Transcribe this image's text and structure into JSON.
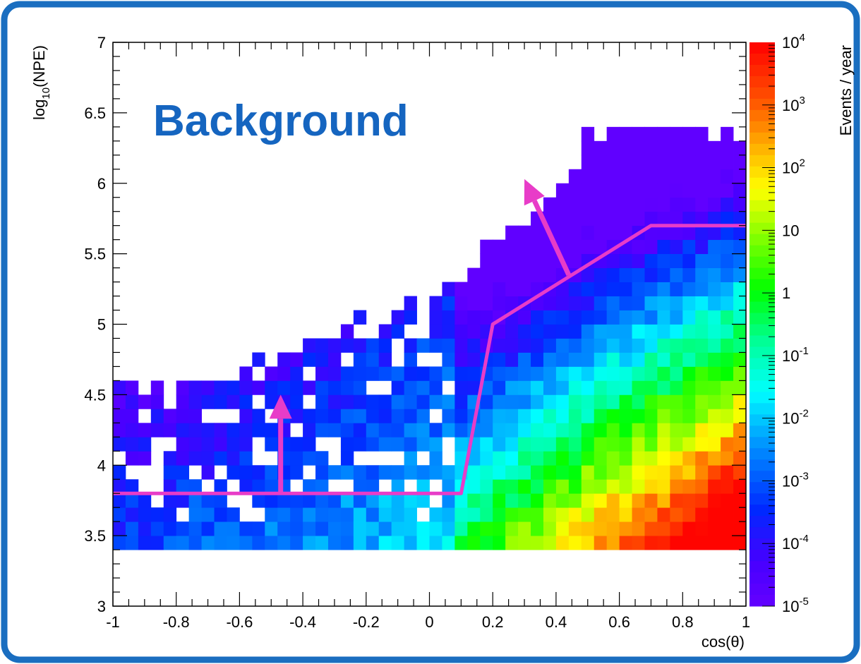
{
  "chart_data": {
    "type": "heatmap",
    "title": "",
    "annotation": "Background",
    "xlabel": "cos(θ)",
    "ylabel_main": "log",
    "ylabel_sub": "10",
    "ylabel_rest": "(NPE)",
    "xlim": [
      -1,
      1
    ],
    "ylim": [
      3,
      7
    ],
    "x_ticks": [
      {
        "v": -1,
        "label": "-1"
      },
      {
        "v": -0.8,
        "label": "-0.8"
      },
      {
        "v": -0.6,
        "label": "-0.6"
      },
      {
        "v": -0.4,
        "label": "-0.4"
      },
      {
        "v": -0.2,
        "label": "-0.2"
      },
      {
        "v": 0,
        "label": "0"
      },
      {
        "v": 0.2,
        "label": "0.2"
      },
      {
        "v": 0.4,
        "label": "0.4"
      },
      {
        "v": 0.6,
        "label": "0.6"
      },
      {
        "v": 0.8,
        "label": "0.8"
      },
      {
        "v": 1,
        "label": "1"
      }
    ],
    "y_ticks": [
      {
        "v": 3,
        "label": "3"
      },
      {
        "v": 3.5,
        "label": "3.5"
      },
      {
        "v": 4,
        "label": "4"
      },
      {
        "v": 4.5,
        "label": "4.5"
      },
      {
        "v": 5,
        "label": "5"
      },
      {
        "v": 5.5,
        "label": "5.5"
      },
      {
        "v": 6,
        "label": "6"
      },
      {
        "v": 6.5,
        "label": "6.5"
      },
      {
        "v": 7,
        "label": "7"
      }
    ],
    "colorbar": {
      "title": "Events / year",
      "log_min": -5,
      "log_max": 4,
      "labels": [
        {
          "exp": 4,
          "base": "10",
          "sup": "4"
        },
        {
          "exp": 3,
          "base": "10",
          "sup": "3"
        },
        {
          "exp": 2,
          "base": "10",
          "sup": "2"
        },
        {
          "exp": 1,
          "base": "10",
          "sup": ""
        },
        {
          "exp": 0,
          "base": "1",
          "sup": ""
        },
        {
          "exp": -1,
          "base": "10",
          "sup": "-1"
        },
        {
          "exp": -2,
          "base": "10",
          "sup": "-2"
        },
        {
          "exp": -3,
          "base": "10",
          "sup": "-3"
        },
        {
          "exp": -4,
          "base": "10",
          "sup": "-4"
        },
        {
          "exp": -5,
          "base": "10",
          "sup": "-5"
        }
      ]
    },
    "bins": {
      "x_min": -1,
      "x_max": 1,
      "nx": 50,
      "y_min": 3.4,
      "y_max": 6.4,
      "ny": 30
    },
    "density_model": "log10 rate increases toward high cos(θ) and low log10(NPE); sparse speckle at low cos(θ)",
    "cut_line": {
      "color": "#e83cc8",
      "points": [
        [
          -1,
          3.8
        ],
        [
          0.1,
          3.8
        ],
        [
          0.2,
          5.0
        ],
        [
          0.7,
          5.7
        ],
        [
          1,
          5.7
        ]
      ]
    },
    "arrows": [
      {
        "from": [
          -0.47,
          3.8
        ],
        "to": [
          -0.47,
          4.5
        ]
      },
      {
        "from": [
          0.44,
          5.35
        ],
        "to": [
          0.3,
          6.03
        ]
      }
    ]
  }
}
